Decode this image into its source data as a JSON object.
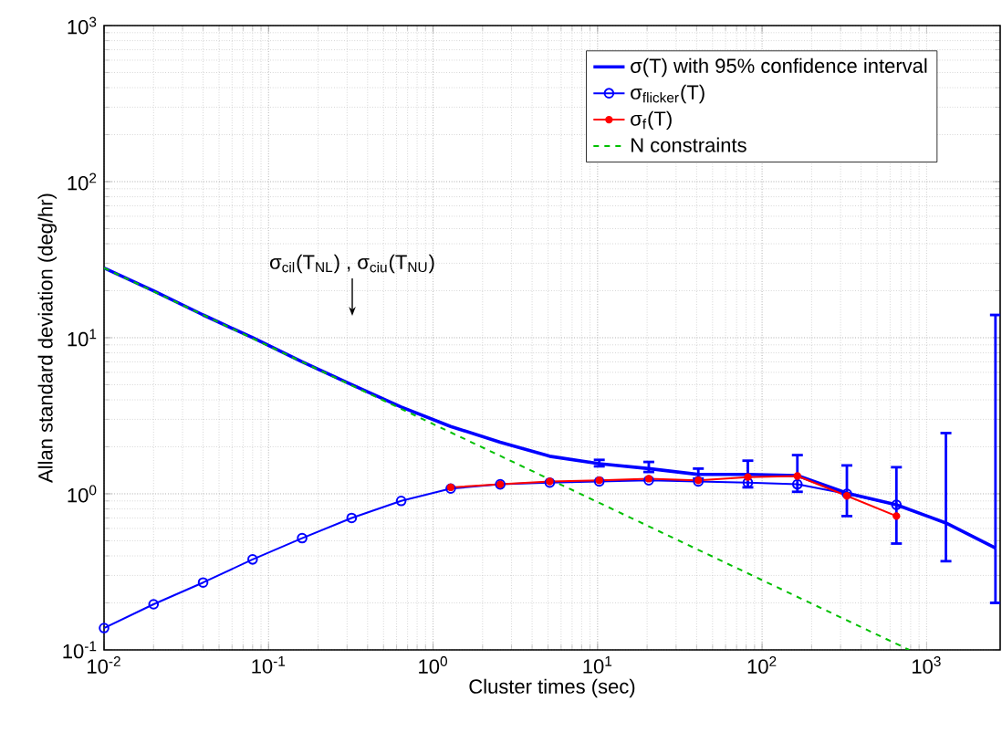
{
  "chart_data": {
    "type": "line",
    "xlabel": "Cluster times (sec)",
    "ylabel": "Allan standard deviation (deg/hr)",
    "log": "xy",
    "grid": true,
    "legend": "top right",
    "xlim": [
      0.01,
      2800
    ],
    "ylim": [
      0.1,
      1000
    ],
    "xticks": [
      {
        "value": 0.01,
        "label": "10$^{-2}$"
      },
      {
        "value": 0.1,
        "label": "10$^{-1}$"
      },
      {
        "value": 1,
        "label": "10$^{0}$"
      },
      {
        "value": 10,
        "label": "10$^{1}$"
      },
      {
        "value": 100,
        "label": "10$^{2}$"
      },
      {
        "value": 1000,
        "label": "10$^{3}$"
      }
    ],
    "yticks": [
      {
        "value": 0.1,
        "label": "10$^{-1}$"
      },
      {
        "value": 1,
        "label": "10$^{0}$"
      },
      {
        "value": 10,
        "label": "10$^{1}$"
      },
      {
        "value": 100,
        "label": "10$^{2}$"
      },
      {
        "value": 1000,
        "label": "10$^{3}$"
      }
    ],
    "x": [
      0.01,
      0.02,
      0.04,
      0.08,
      0.16,
      0.32,
      0.64,
      1.28,
      2.56,
      5.12,
      10.24,
      20.48,
      40.96,
      81.92,
      163.84,
      327.68,
      655.36,
      1310.72,
      2621.44
    ],
    "series": [
      {
        "name": "σ(T) with 95% confidence interval",
        "color": "#0000ff",
        "marker": "none",
        "values": [
          28,
          20,
          14,
          10,
          7,
          5,
          3.6,
          2.7,
          2.14,
          1.74,
          1.56,
          1.45,
          1.33,
          1.33,
          1.31,
          1.01,
          0.85,
          0.65,
          0.45
        ],
        "errors": [
          null,
          null,
          null,
          null,
          null,
          null,
          null,
          null,
          null,
          null,
          [
            1.5,
            1.65
          ],
          [
            1.38,
            1.6
          ],
          [
            1.25,
            1.45
          ],
          [
            1.1,
            1.63
          ],
          [
            1.03,
            1.77
          ],
          [
            0.72,
            1.52
          ],
          [
            0.48,
            1.48
          ],
          [
            0.37,
            2.45
          ],
          [
            0.2,
            14
          ]
        ]
      },
      {
        "name": "σ$_{flicker}$(T)",
        "color": "#0000ff",
        "marker": "circle",
        "x": [
          0.01,
          0.02,
          0.04,
          0.08,
          0.16,
          0.32,
          0.64,
          1.28,
          2.56,
          5.12,
          10.24,
          20.48,
          40.96,
          81.92,
          163.84,
          327.68,
          655.36
        ],
        "values": [
          0.138,
          0.196,
          0.27,
          0.38,
          0.52,
          0.7,
          0.9,
          1.08,
          1.15,
          1.18,
          1.2,
          1.22,
          1.2,
          1.18,
          1.15,
          1.0,
          0.85
        ]
      },
      {
        "name": "σ$_{f}$(T)",
        "color": "#ff0000",
        "marker": "dot",
        "x": [
          1.28,
          2.56,
          5.12,
          10.24,
          20.48,
          40.96,
          81.92,
          163.84,
          327.68,
          655.36
        ],
        "values": [
          1.1,
          1.15,
          1.2,
          1.22,
          1.25,
          1.22,
          1.28,
          1.3,
          0.97,
          0.72
        ]
      },
      {
        "name": "N constraints",
        "color": "#00c000",
        "marker": "none",
        "line_style": "dashed",
        "x": [
          0.01,
          784
        ],
        "values": [
          28,
          0.1
        ]
      }
    ],
    "annotations": [
      "σ$_{cil}$(T$_{NL}$) , σ$_{ciu}$(T$_{NU}$)"
    ]
  }
}
